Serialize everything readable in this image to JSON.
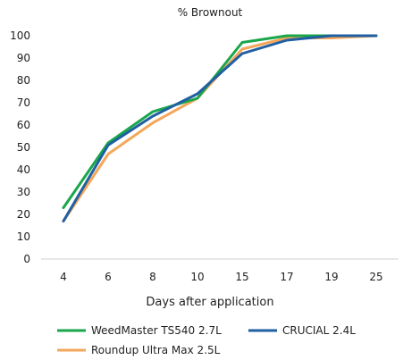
{
  "chart_data": {
    "type": "line",
    "title": "% Brownout",
    "xlabel": "Days after application",
    "ylabel": "",
    "categories": [
      "4",
      "6",
      "8",
      "10",
      "15",
      "17",
      "19",
      "25"
    ],
    "ylim": [
      0,
      100
    ],
    "yticks": [
      "0",
      "10",
      "20",
      "30",
      "40",
      "50",
      "60",
      "70",
      "80",
      "90",
      "100"
    ],
    "grid": false,
    "legend_position": "bottom",
    "series": [
      {
        "name": "WeedMaster TS540 2.7L",
        "color": "#1aa64b",
        "values": [
          23,
          52,
          66,
          72,
          97,
          100,
          100,
          100
        ]
      },
      {
        "name": "CRUCIAL 2.4L",
        "color": "#1f5fa3",
        "values": [
          17,
          51,
          64,
          74,
          92,
          98,
          100,
          100
        ]
      },
      {
        "name": "Roundup Ultra Max 2.5L",
        "color": "#f4a75a",
        "values": [
          17,
          47,
          61,
          72,
          94,
          99,
          99,
          100
        ]
      }
    ]
  }
}
